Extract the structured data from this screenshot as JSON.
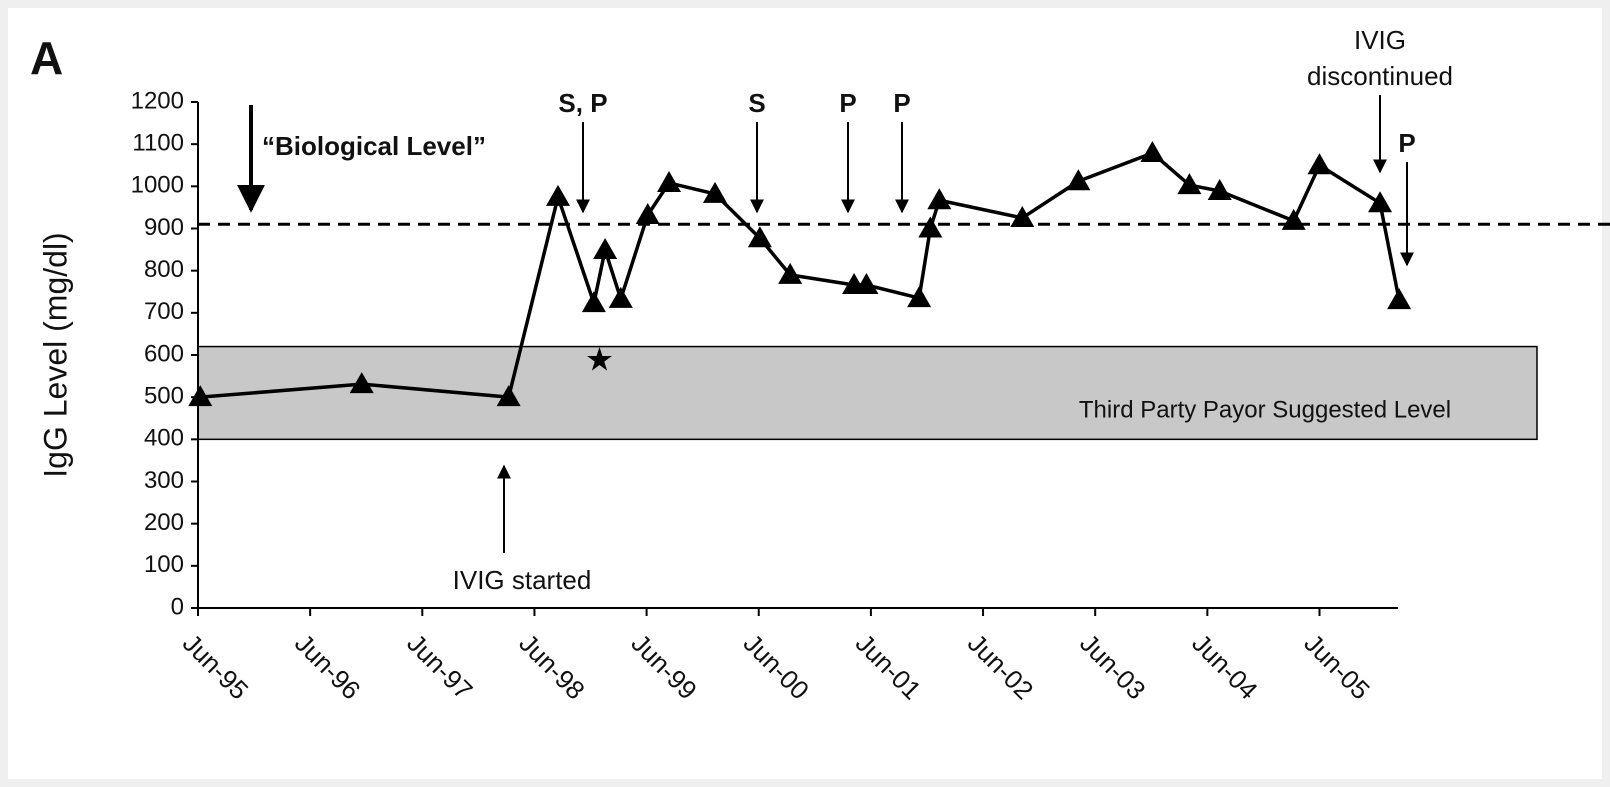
{
  "chart_data": {
    "type": "line",
    "panel_label": "A",
    "y_label": "IgG Level (mg/dl)",
    "x": [
      1995.52,
      1996.96,
      1998.27,
      1998.71,
      1999.03,
      1999.13,
      1999.27,
      1999.51,
      1999.7,
      2000.11,
      2000.51,
      2000.78,
      2001.35,
      2001.46,
      2001.93,
      2002.03,
      2002.11,
      2002.85,
      2003.35,
      2004.01,
      2004.34,
      2004.61,
      2005.27,
      2005.5,
      2006.04,
      2006.21
    ],
    "series": [
      {
        "name": "IgG",
        "color": "#000000",
        "values": [
          500,
          531,
          500,
          975,
          723,
          849,
          733,
          932,
          1008,
          982,
          877,
          790,
          766,
          766,
          735,
          900,
          967,
          925,
          1012,
          1079,
          1003,
          989,
          918,
          1050,
          960,
          730
        ]
      }
    ],
    "xlim": [
      1995.5,
      2006.2
    ],
    "xticks": [
      {
        "value": 1995.5,
        "label": "Jun-95"
      },
      {
        "value": 1996.5,
        "label": "Jun-96"
      },
      {
        "value": 1997.5,
        "label": "Jun-97"
      },
      {
        "value": 1998.5,
        "label": "Jun-98"
      },
      {
        "value": 1999.5,
        "label": "Jun-99"
      },
      {
        "value": 2000.5,
        "label": "Jun-00"
      },
      {
        "value": 2001.5,
        "label": "Jun-01"
      },
      {
        "value": 2002.5,
        "label": "Jun-02"
      },
      {
        "value": 2003.5,
        "label": "Jun-03"
      },
      {
        "value": 2004.5,
        "label": "Jun-04"
      },
      {
        "value": 2005.5,
        "label": "Jun-05"
      }
    ],
    "ylim": [
      0,
      1200
    ],
    "yticks": [
      0,
      100,
      200,
      300,
      400,
      500,
      600,
      700,
      800,
      900,
      1000,
      1100,
      1200
    ],
    "reference_line": 910,
    "band": [
      400,
      620
    ],
    "band_color": "#c8c8c8",
    "star_point": [
      1999.08,
      588
    ],
    "annotations": [
      {
        "text": "“Biological Level”"
      },
      {
        "text": "S, P"
      },
      {
        "text": "S"
      },
      {
        "text": "P"
      },
      {
        "text": "P"
      },
      {
        "lines": [
          "IVIG",
          "discontinued"
        ]
      },
      {
        "text": "P"
      },
      {
        "text": "IVIG started"
      },
      {
        "text": "Third Party Payor Suggested Level"
      }
    ]
  }
}
